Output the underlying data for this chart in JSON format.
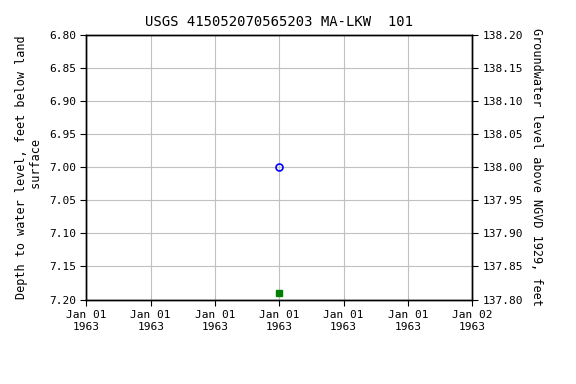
{
  "title": "USGS 415052070565203 MA-LKW  101",
  "ylabel_left": "Depth to water level, feet below land\n surface",
  "ylabel_right": "Groundwater level above NGVD 1929, feet",
  "ylim_left_top": 6.8,
  "ylim_left_bottom": 7.2,
  "ylim_right_top": 138.2,
  "ylim_right_bottom": 137.8,
  "yticks_left": [
    6.8,
    6.85,
    6.9,
    6.95,
    7.0,
    7.05,
    7.1,
    7.15,
    7.2
  ],
  "yticks_right": [
    138.2,
    138.15,
    138.1,
    138.05,
    138.0,
    137.95,
    137.9,
    137.85,
    137.8
  ],
  "data_point_x": 3.0,
  "data_point_y": 7.0,
  "data_point_color": "#0000ff",
  "green_square_x": 3.0,
  "green_square_y": 7.19,
  "green_square_color": "#008000",
  "background_color": "#ffffff",
  "grid_color": "#c0c0c0",
  "legend_color": "#008000",
  "font_family": "monospace",
  "title_fontsize": 10,
  "label_fontsize": 8.5,
  "tick_fontsize": 8,
  "x_min": 0,
  "x_max": 6,
  "xtick_positions": [
    0,
    1,
    2,
    3,
    4,
    5,
    6
  ],
  "xtick_labels": [
    "Jan 01\n1963",
    "Jan 01\n1963",
    "Jan 01\n1963",
    "Jan 01\n1963",
    "Jan 01\n1963",
    "Jan 01\n1963",
    "Jan 02\n1963"
  ]
}
